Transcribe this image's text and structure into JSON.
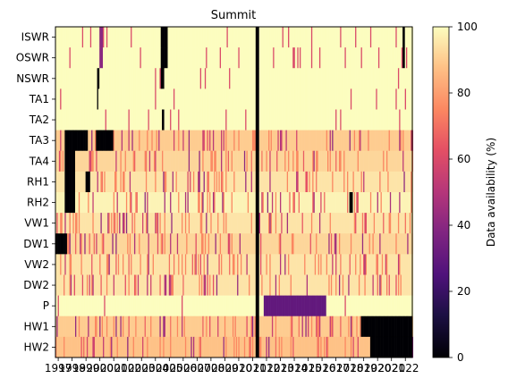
{
  "chart_data": {
    "type": "heatmap",
    "title": "Summit",
    "xlabel": "",
    "ylabel": "",
    "rows": [
      "ISWR",
      "OSWR",
      "NSWR",
      "TA1",
      "TA2",
      "TA3",
      "TA4",
      "RH1",
      "RH2",
      "VW1",
      "DW1",
      "VW2",
      "DW2",
      "P",
      "HW1",
      "HW2"
    ],
    "x_tick_labels": [
      "1997",
      "1998",
      "1999",
      "2000",
      "2001",
      "2002",
      "2003",
      "2004",
      "2005",
      "2006",
      "2007",
      "2008",
      "2009",
      "2010",
      "2011",
      "2012",
      "2013",
      "2014",
      "2015",
      "2016",
      "2017",
      "2018",
      "2019",
      "2020",
      "2021",
      "2022"
    ],
    "x_range": [
      1996.8,
      2022.5
    ],
    "colorbar": {
      "label": "Data availability (%)",
      "range": [
        0,
        100
      ],
      "ticks": [
        "0",
        "20",
        "40",
        "60",
        "80",
        "100"
      ],
      "colormap": "magma"
    },
    "month_step": 0.08333,
    "availability_pct_samples": {
      "ISWR": {
        "base": 100,
        "gaps": [
          [
            2000.0,
            2000.2,
            40
          ],
          [
            2004.4,
            2004.9,
            0
          ],
          [
            2011.2,
            2011.5,
            0
          ],
          [
            2021.8,
            2022.0,
            0
          ]
        ]
      },
      "OSWR": {
        "base": 100,
        "gaps": [
          [
            2000.0,
            2000.2,
            40
          ],
          [
            2004.4,
            2004.9,
            0
          ],
          [
            2011.2,
            2011.5,
            0
          ],
          [
            2021.8,
            2022.0,
            0
          ]
        ]
      },
      "NSWR": {
        "base": 100,
        "gaps": [
          [
            1999.8,
            2000.0,
            0
          ],
          [
            2004.4,
            2004.6,
            0
          ],
          [
            2011.2,
            2011.5,
            0
          ]
        ]
      },
      "TA1": {
        "base": 100,
        "gaps": [
          [
            1999.8,
            1999.9,
            0
          ],
          [
            2011.2,
            2011.5,
            0
          ]
        ]
      },
      "TA2": {
        "base": 100,
        "gaps": [
          [
            2004.5,
            2004.6,
            0
          ],
          [
            2011.2,
            2011.5,
            0
          ]
        ]
      },
      "TA3": {
        "base": 90,
        "gaps": [
          [
            1997.5,
            1999.1,
            0
          ],
          [
            1999.7,
            2001.0,
            0
          ],
          [
            2011.2,
            2011.5,
            0
          ]
        ]
      },
      "TA4": {
        "base": 92,
        "gaps": [
          [
            1997.5,
            1998.2,
            0
          ],
          [
            2011.2,
            2011.5,
            0
          ]
        ]
      },
      "RH1": {
        "base": 95,
        "gaps": [
          [
            1997.5,
            1998.2,
            0
          ],
          [
            1999.0,
            1999.3,
            0
          ],
          [
            2011.2,
            2011.5,
            0
          ]
        ]
      },
      "RH2": {
        "base": 98,
        "gaps": [
          [
            1997.5,
            1998.2,
            0
          ],
          [
            2011.2,
            2011.5,
            0
          ],
          [
            2018.0,
            2018.2,
            0
          ]
        ]
      },
      "VW1": {
        "base": 95,
        "gaps": [
          [
            2011.2,
            2011.5,
            0
          ]
        ]
      },
      "DW1": {
        "base": 92,
        "gaps": [
          [
            1996.8,
            1997.6,
            0
          ],
          [
            2011.2,
            2011.5,
            0
          ]
        ]
      },
      "VW2": {
        "base": 95,
        "gaps": [
          [
            2011.2,
            2011.5,
            0
          ]
        ]
      },
      "DW2": {
        "base": 95,
        "gaps": [
          [
            2011.2,
            2011.5,
            0
          ]
        ]
      },
      "P": {
        "base": 100,
        "gaps": [
          [
            2011.2,
            2011.5,
            0
          ],
          [
            2011.8,
            2016.3,
            30
          ]
        ]
      },
      "HW1": {
        "base": 90,
        "gaps": [
          [
            2011.2,
            2011.5,
            0
          ],
          [
            2018.8,
            2022.5,
            0
          ]
        ]
      },
      "HW2": {
        "base": 88,
        "gaps": [
          [
            2011.2,
            2011.5,
            0
          ],
          [
            2019.5,
            2022.5,
            0
          ]
        ]
      }
    }
  }
}
